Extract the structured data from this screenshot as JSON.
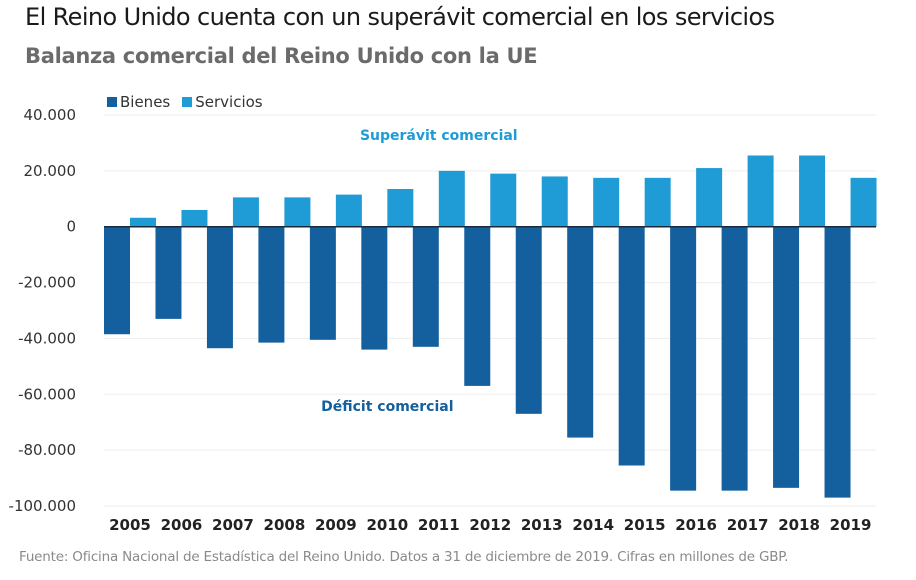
{
  "chart_data": {
    "type": "bar",
    "title": "El Reino Unido cuenta con un superávit comercial en los servicios",
    "subtitle": "Balanza comercial del Reino Unido con la UE",
    "xlabel": "",
    "ylabel": "",
    "ylim": [
      -100000,
      40000
    ],
    "yticks": [
      40000,
      20000,
      0,
      -20000,
      -40000,
      -60000,
      -80000,
      -100000
    ],
    "ytick_labels": [
      "40.000",
      "20.000",
      "0",
      "-20.000",
      "-40.000",
      "-60.000",
      "-80.000",
      "-100.000"
    ],
    "grid": true,
    "legend_position": "top-left",
    "categories": [
      "2005",
      "2006",
      "2007",
      "2008",
      "2009",
      "2010",
      "2011",
      "2012",
      "2013",
      "2014",
      "2015",
      "2016",
      "2017",
      "2018",
      "2019"
    ],
    "series": [
      {
        "name": "Bienes",
        "color": "#14609e",
        "values": [
          -38500,
          -33000,
          -43500,
          -41500,
          -40500,
          -44000,
          -43000,
          -57000,
          -67000,
          -75500,
          -85500,
          -94500,
          -94500,
          -93500,
          -97000
        ]
      },
      {
        "name": "Servicios",
        "color": "#1f9bd5",
        "values": [
          3200,
          6000,
          10500,
          10500,
          11500,
          13500,
          20000,
          19000,
          18000,
          17500,
          17500,
          21000,
          25500,
          25500,
          17500
        ]
      }
    ],
    "annotations": [
      {
        "text": "Superávit comercial",
        "color": "#1f9bd5",
        "anchor_year": "2011",
        "anchor_value": 31000
      },
      {
        "text": "Déficit comercial",
        "color": "#14609e",
        "anchor_year": "2010",
        "anchor_value": -66000
      }
    ],
    "source": "Fuente: Oficina Nacional de Estadística del Reino Unido. Datos a 31 de diciembre de 2019. Cifras en millones de GBP."
  }
}
